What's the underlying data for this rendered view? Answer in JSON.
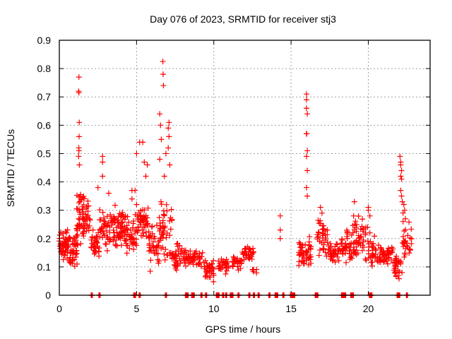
{
  "chart_data": {
    "type": "scatter",
    "title": "Day 076 of 2023, SRMTID for receiver stj3",
    "xlabel": "GPS time / hours",
    "ylabel": "SRMTID / TECUs",
    "xlim": [
      0,
      24
    ],
    "ylim": [
      0,
      0.9
    ],
    "xticks": [
      0,
      5,
      10,
      15,
      20
    ],
    "xtick_labels": [
      "0",
      "5",
      "10",
      "15",
      "20"
    ],
    "yticks": [
      0,
      0.1,
      0.2,
      0.3,
      0.4,
      0.5,
      0.6,
      0.7,
      0.8,
      0.9
    ],
    "ytick_labels": [
      "0",
      "0.1",
      "0.2",
      "0.3",
      "0.4",
      "0.5",
      "0.6",
      "0.7",
      "0.8",
      "0.9"
    ],
    "grid": true,
    "legend": "none",
    "marker": "plus",
    "color": "#ff0000",
    "series": [
      {
        "name": "SRMTID",
        "clusters": [
          {
            "x_range": [
              0.0,
              0.6
            ],
            "y_range": [
              0.11,
              0.24
            ],
            "count": 60
          },
          {
            "x_range": [
              0.6,
              1.2
            ],
            "y_range": [
              0.06,
              0.28
            ],
            "count": 45
          },
          {
            "x_range": [
              1.1,
              1.6
            ],
            "y_range": [
              0.15,
              0.42
            ],
            "count": 40
          },
          {
            "x_range": [
              1.5,
              2.0
            ],
            "y_range": [
              0.18,
              0.38
            ],
            "count": 30
          },
          {
            "x_range": [
              2.0,
              2.6
            ],
            "y_range": [
              0.09,
              0.26
            ],
            "count": 35
          },
          {
            "x_range": [
              2.6,
              3.3
            ],
            "y_range": [
              0.13,
              0.32
            ],
            "count": 40
          },
          {
            "x_range": [
              3.3,
              4.2
            ],
            "y_range": [
              0.14,
              0.33
            ],
            "count": 60
          },
          {
            "x_range": [
              4.2,
              5.0
            ],
            "y_range": [
              0.13,
              0.3
            ],
            "count": 50
          },
          {
            "x_range": [
              5.0,
              5.8
            ],
            "y_range": [
              0.15,
              0.35
            ],
            "count": 50
          },
          {
            "x_range": [
              5.8,
              6.5
            ],
            "y_range": [
              0.06,
              0.3
            ],
            "count": 40
          },
          {
            "x_range": [
              6.5,
              7.3
            ],
            "y_range": [
              0.08,
              0.38
            ],
            "count": 45
          },
          {
            "x_range": [
              7.3,
              8.2
            ],
            "y_range": [
              0.07,
              0.2
            ],
            "count": 45
          },
          {
            "x_range": [
              8.2,
              9.3
            ],
            "y_range": [
              0.08,
              0.18
            ],
            "count": 45
          },
          {
            "x_range": [
              9.3,
              10.0
            ],
            "y_range": [
              0.03,
              0.15
            ],
            "count": 35
          },
          {
            "x_range": [
              10.3,
              11.0
            ],
            "y_range": [
              0.07,
              0.14
            ],
            "count": 30
          },
          {
            "x_range": [
              11.2,
              11.8
            ],
            "y_range": [
              0.08,
              0.16
            ],
            "count": 25
          },
          {
            "x_range": [
              11.8,
              12.6
            ],
            "y_range": [
              0.1,
              0.19
            ],
            "count": 35
          },
          {
            "x_range": [
              12.5,
              12.8
            ],
            "y_range": [
              0.07,
              0.1
            ],
            "count": 6
          },
          {
            "x_range": [
              15.5,
              16.3
            ],
            "y_range": [
              0.08,
              0.22
            ],
            "count": 50
          },
          {
            "x_range": [
              16.7,
              17.4
            ],
            "y_range": [
              0.1,
              0.3
            ],
            "count": 40
          },
          {
            "x_range": [
              17.4,
              18.2
            ],
            "y_range": [
              0.09,
              0.21
            ],
            "count": 40
          },
          {
            "x_range": [
              18.2,
              19.0
            ],
            "y_range": [
              0.1,
              0.26
            ],
            "count": 40
          },
          {
            "x_range": [
              19.0,
              20.0
            ],
            "y_range": [
              0.09,
              0.3
            ],
            "count": 50
          },
          {
            "x_range": [
              20.0,
              20.8
            ],
            "y_range": [
              0.07,
              0.22
            ],
            "count": 40
          },
          {
            "x_range": [
              20.8,
              21.6
            ],
            "y_range": [
              0.09,
              0.19
            ],
            "count": 40
          },
          {
            "x_range": [
              21.6,
              22.2
            ],
            "y_range": [
              0.04,
              0.17
            ],
            "count": 30
          },
          {
            "x_range": [
              22.2,
              22.8
            ],
            "y_range": [
              0.09,
              0.27
            ],
            "count": 30
          }
        ],
        "points": [
          [
            1.27,
            0.77
          ],
          [
            1.25,
            0.72
          ],
          [
            1.27,
            0.715
          ],
          [
            1.29,
            0.61
          ],
          [
            1.28,
            0.56
          ],
          [
            1.26,
            0.52
          ],
          [
            1.27,
            0.51
          ],
          [
            1.3,
            0.46
          ],
          [
            1.25,
            0.49
          ],
          [
            2.8,
            0.49
          ],
          [
            2.8,
            0.47
          ],
          [
            2.8,
            0.42
          ],
          [
            2.5,
            0.38
          ],
          [
            3.2,
            0.36
          ],
          [
            4.7,
            0.37
          ],
          [
            4.9,
            0.37
          ],
          [
            4.7,
            0.34
          ],
          [
            5.0,
            0.32
          ],
          [
            5.2,
            0.54
          ],
          [
            5.4,
            0.54
          ],
          [
            5.0,
            0.5
          ],
          [
            5.5,
            0.47
          ],
          [
            5.7,
            0.46
          ],
          [
            5.6,
            0.42
          ],
          [
            6.5,
            0.64
          ],
          [
            6.55,
            0.6
          ],
          [
            6.7,
            0.825
          ],
          [
            6.72,
            0.78
          ],
          [
            6.74,
            0.74
          ],
          [
            6.9,
            0.5
          ],
          [
            6.8,
            0.42
          ],
          [
            7.1,
            0.61
          ],
          [
            7.05,
            0.59
          ],
          [
            7.1,
            0.56
          ],
          [
            7.05,
            0.52
          ],
          [
            7.15,
            0.46
          ],
          [
            6.6,
            0.55
          ],
          [
            6.5,
            0.48
          ],
          [
            14.3,
            0.28
          ],
          [
            14.3,
            0.23
          ],
          [
            14.3,
            0.2
          ],
          [
            16.0,
            0.71
          ],
          [
            16.0,
            0.69
          ],
          [
            16.0,
            0.66
          ],
          [
            16.05,
            0.64
          ],
          [
            16.0,
            0.57
          ],
          [
            16.02,
            0.57
          ],
          [
            16.05,
            0.51
          ],
          [
            16.0,
            0.49
          ],
          [
            16.05,
            0.44
          ],
          [
            16.0,
            0.38
          ],
          [
            16.05,
            0.35
          ],
          [
            16.9,
            0.31
          ],
          [
            17.0,
            0.29
          ],
          [
            19.1,
            0.33
          ],
          [
            19.05,
            0.28
          ],
          [
            20.0,
            0.31
          ],
          [
            20.0,
            0.3
          ],
          [
            20.1,
            0.28
          ],
          [
            19.95,
            0.24
          ],
          [
            20.1,
            0.22
          ],
          [
            22.05,
            0.49
          ],
          [
            22.1,
            0.47
          ],
          [
            22.1,
            0.46
          ],
          [
            22.15,
            0.44
          ],
          [
            22.1,
            0.42
          ],
          [
            22.15,
            0.41
          ],
          [
            22.1,
            0.37
          ],
          [
            22.15,
            0.35
          ],
          [
            22.2,
            0.33
          ],
          [
            22.3,
            0.32
          ],
          [
            22.35,
            0.3
          ],
          [
            22.25,
            0.29
          ],
          [
            22.25,
            0.26
          ],
          [
            22.4,
            0.27
          ]
        ],
        "zero_points_x": [
          2.1,
          2.6,
          4.85,
          4.9,
          5.2,
          6.9,
          8.2,
          8.3,
          8.6,
          8.7,
          9.2,
          9.5,
          10.2,
          10.3,
          10.6,
          10.8,
          11.1,
          11.2,
          11.6,
          12.3,
          12.6,
          12.9,
          13.6,
          14.0,
          14.1,
          14.5,
          15.0,
          15.1,
          15.2,
          16.6,
          16.7,
          18.3,
          18.4,
          18.5,
          18.9,
          19.0,
          20.1,
          20.2,
          21.9,
          22.0,
          22.5
        ]
      }
    ]
  }
}
